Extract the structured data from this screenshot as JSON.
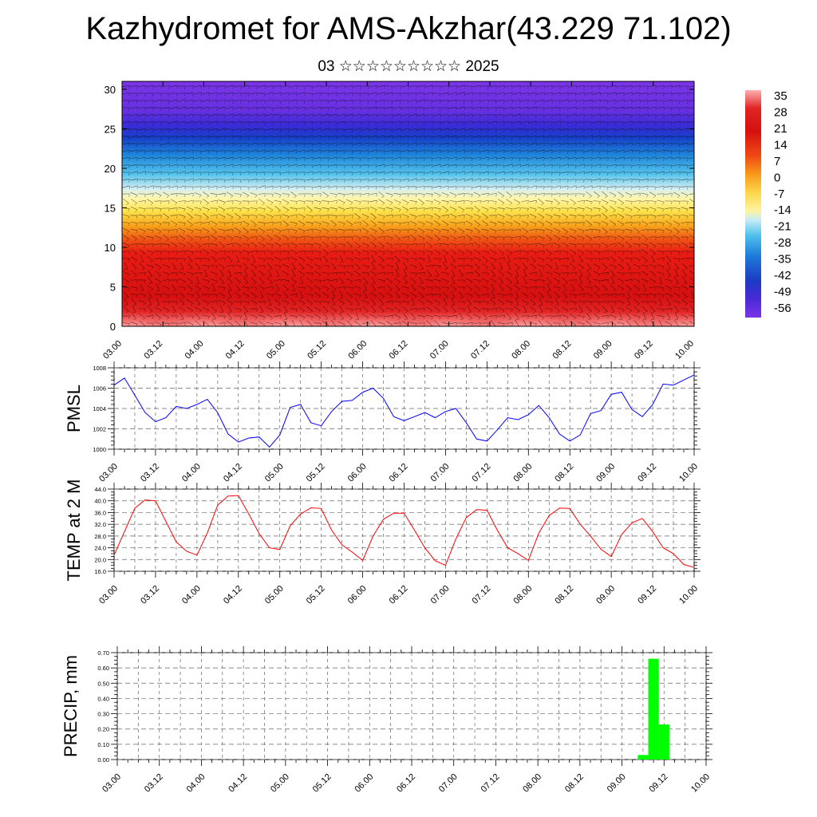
{
  "title": "Kazhydromet for AMS-Akzhar(43.229 71.102)",
  "subtitle": "03 ☆☆☆☆☆☆☆☆☆ 2025",
  "colors": {
    "pmsl_line": "#0000ff",
    "temp_line": "#ff0000",
    "precip_bar": "#00ff00"
  },
  "chart_data": [
    {
      "type": "heatmap",
      "description_key": "cross-section",
      "x_tick_labels": [
        "03.00",
        "03.12",
        "04.00",
        "04.12",
        "05.00",
        "05.12",
        "06.00",
        "06.12",
        "07.00",
        "07.12",
        "08.00",
        "08.12",
        "09.00",
        "09.12",
        "10.00"
      ],
      "y_tick_labels": [
        "0",
        "5",
        "10",
        "15",
        "20",
        "25",
        "30"
      ],
      "ylim": [
        0,
        31
      ],
      "colorbar_labels": [
        "35",
        "28",
        "21",
        "14",
        "7",
        "0",
        "-7",
        "-14",
        "-21",
        "-28",
        "-35",
        "-42",
        "-49",
        "-56"
      ]
    },
    {
      "type": "line",
      "ylabel": "PMSL",
      "ylim": [
        1000,
        1008
      ],
      "y_tick_labels": [
        "1000",
        "1002",
        "1004",
        "1006",
        "1008"
      ],
      "x_tick_labels": [
        "03.00",
        "03.12",
        "04.00",
        "04.12",
        "05.00",
        "05.12",
        "06.00",
        "06.12",
        "07.00",
        "07.12",
        "08.00",
        "08.12",
        "09.00",
        "09.12",
        "10.00"
      ],
      "grid": true,
      "x": [
        0,
        3,
        6,
        9,
        12,
        15,
        18,
        21,
        24,
        27,
        30,
        33,
        36,
        39,
        42,
        45,
        48,
        51,
        54,
        57,
        60,
        63,
        66,
        69,
        72,
        75,
        78,
        81,
        84,
        87,
        90,
        93,
        96,
        99,
        102,
        105,
        108,
        111,
        114,
        117,
        120,
        123,
        126,
        129,
        132,
        135,
        138,
        141,
        144,
        147,
        150,
        153,
        156,
        159,
        162,
        165,
        168
      ],
      "values": [
        1006.3,
        1007.0,
        1005.3,
        1003.6,
        1002.7,
        1003.1,
        1004.2,
        1004.0,
        1004.4,
        1004.9,
        1003.6,
        1001.5,
        1000.7,
        1001.1,
        1001.2,
        1000.2,
        1001.4,
        1004.1,
        1004.4,
        1002.6,
        1002.3,
        1003.7,
        1004.7,
        1004.8,
        1005.6,
        1006.0,
        1005.0,
        1003.2,
        1002.8,
        1003.2,
        1003.6,
        1003.1,
        1003.7,
        1004.0,
        1002.6,
        1001.0,
        1000.8,
        1001.9,
        1003.1,
        1002.9,
        1003.4,
        1004.3,
        1003.1,
        1001.5,
        1000.8,
        1001.4,
        1003.5,
        1003.8,
        1005.4,
        1005.6,
        1003.9,
        1003.2,
        1004.4,
        1006.4,
        1006.3,
        1006.8,
        1007.3
      ]
    },
    {
      "type": "line",
      "ylabel": "TEMP at 2 M",
      "ylim": [
        16,
        44
      ],
      "y_tick_labels": [
        "16.0",
        "20.0",
        "24.0",
        "28.0",
        "32.0",
        "36.0",
        "40.0",
        "44.0"
      ],
      "x_tick_labels": [
        "03.00",
        "03.12",
        "04.00",
        "04.12",
        "05.00",
        "05.12",
        "06.00",
        "06.12",
        "07.00",
        "07.12",
        "08.00",
        "08.12",
        "09.00",
        "09.12",
        "10.00"
      ],
      "grid": true,
      "x": [
        0,
        3,
        6,
        9,
        12,
        15,
        18,
        21,
        24,
        27,
        30,
        33,
        36,
        39,
        42,
        45,
        48,
        51,
        54,
        57,
        60,
        63,
        66,
        69,
        72,
        75,
        78,
        81,
        84,
        87,
        90,
        93,
        96,
        99,
        102,
        105,
        108,
        111,
        114,
        117,
        120,
        123,
        126,
        129,
        132,
        135,
        138,
        141,
        144,
        147,
        150,
        153,
        156,
        159,
        162,
        165,
        168
      ],
      "values": [
        21.5,
        29.5,
        37.5,
        40.3,
        40.0,
        33.0,
        26.0,
        22.8,
        21.5,
        29.0,
        38.5,
        41.6,
        41.8,
        35.5,
        28.8,
        24.0,
        23.4,
        31.5,
        35.5,
        37.6,
        37.4,
        30.0,
        25.0,
        22.5,
        19.7,
        28.0,
        33.7,
        35.8,
        35.8,
        30.0,
        24.0,
        19.6,
        18.0,
        27.0,
        34.3,
        37.0,
        36.8,
        30.0,
        24.0,
        22.0,
        19.7,
        29.0,
        35.0,
        37.5,
        37.4,
        32.0,
        28.0,
        23.5,
        21.0,
        28.5,
        32.5,
        34.0,
        29.5,
        24.0,
        22.0,
        18.3,
        17.3
      ]
    },
    {
      "type": "bar",
      "ylabel": "PRECIP, mm",
      "ylim": [
        0,
        0.7
      ],
      "y_tick_labels": [
        "0.00",
        "0.10",
        "0.20",
        "0.30",
        "0.40",
        "0.50",
        "0.60",
        "0.70"
      ],
      "x_tick_labels": [
        "03.00",
        "03.12",
        "04.00",
        "04.12",
        "05.00",
        "05.12",
        "06.00",
        "06.12",
        "07.00",
        "07.12",
        "08.00",
        "08.12",
        "09.00",
        "09.12",
        "10.00"
      ],
      "grid": true,
      "x": [
        150,
        153,
        156,
        159
      ],
      "values": [
        0.03,
        0.66,
        0.23,
        0.0
      ]
    }
  ]
}
